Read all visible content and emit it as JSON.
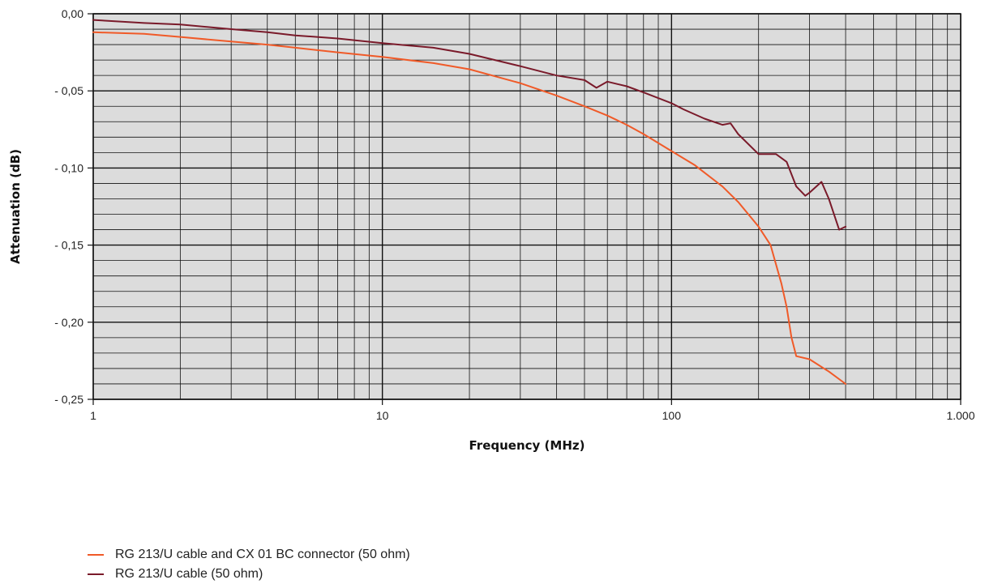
{
  "chart_data": {
    "type": "line",
    "title": "",
    "xlabel": "Frequency (MHz)",
    "ylabel": "Attenuation (dB)",
    "x_scale": "log",
    "xlim": [
      1,
      1000
    ],
    "ylim": [
      -0.25,
      0
    ],
    "x_tick_values": [
      1,
      10,
      100,
      1000
    ],
    "x_tick_labels": [
      "1",
      "10",
      "100",
      "1.000"
    ],
    "y_tick_values": [
      0,
      -0.05,
      -0.1,
      -0.15,
      -0.2,
      -0.25
    ],
    "y_tick_labels": [
      "0,00",
      "- 0,05",
      "- 0,10",
      "- 0,15",
      "- 0,20",
      "- 0,25"
    ],
    "grid": true,
    "legend_position": "bottom-left",
    "background_color": "#dcdcdc",
    "series": [
      {
        "name": "RG 213/U cable and CX 01 BC connector (50 ohm)",
        "color": "#f05a28",
        "x": [
          1,
          1.5,
          2,
          3,
          4,
          5,
          7,
          10,
          15,
          20,
          30,
          40,
          50,
          60,
          70,
          80,
          100,
          120,
          150,
          170,
          200,
          220,
          240,
          250,
          260,
          270,
          300,
          350,
          400
        ],
        "y": [
          -0.012,
          -0.013,
          -0.015,
          -0.018,
          -0.02,
          -0.022,
          -0.025,
          -0.028,
          -0.032,
          -0.036,
          -0.045,
          -0.053,
          -0.06,
          -0.066,
          -0.072,
          -0.078,
          -0.089,
          -0.098,
          -0.112,
          -0.122,
          -0.138,
          -0.15,
          -0.175,
          -0.19,
          -0.21,
          -0.222,
          -0.224,
          -0.232,
          -0.24
        ]
      },
      {
        "name": "RG 213/U cable (50 ohm)",
        "color": "#7a1a2a",
        "x": [
          1,
          1.5,
          2,
          3,
          4,
          5,
          7,
          10,
          15,
          20,
          30,
          40,
          50,
          55,
          60,
          70,
          80,
          100,
          110,
          130,
          150,
          160,
          170,
          200,
          230,
          250,
          270,
          290,
          300,
          330,
          350,
          380,
          400
        ],
        "y": [
          -0.004,
          -0.006,
          -0.007,
          -0.01,
          -0.012,
          -0.014,
          -0.016,
          -0.019,
          -0.022,
          -0.026,
          -0.034,
          -0.04,
          -0.043,
          -0.048,
          -0.044,
          -0.047,
          -0.051,
          -0.058,
          -0.062,
          -0.068,
          -0.072,
          -0.071,
          -0.078,
          -0.091,
          -0.091,
          -0.096,
          -0.112,
          -0.118,
          -0.116,
          -0.109,
          -0.12,
          -0.14,
          -0.138
        ]
      }
    ]
  }
}
